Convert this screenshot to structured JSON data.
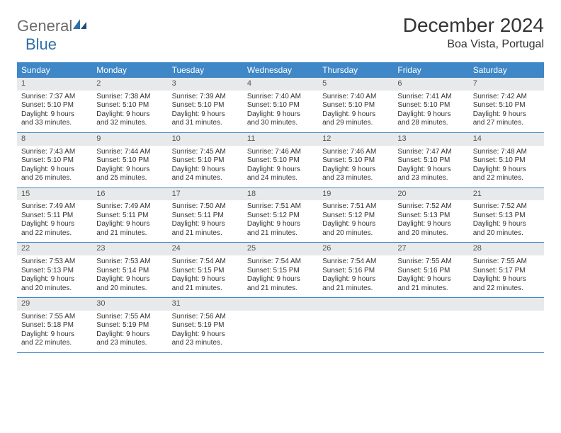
{
  "logo": {
    "general": "General",
    "blue": "Blue"
  },
  "title": "December 2024",
  "location": "Boa Vista, Portugal",
  "colors": {
    "header_bg": "#3f87c6",
    "header_text": "#ffffff",
    "daynum_bg": "#e8e9ea",
    "text": "#333333",
    "logo_gray": "#6b6b6b",
    "logo_blue": "#2f6fa8",
    "border": "#3f87c6",
    "page_bg": "#ffffff"
  },
  "day_names": [
    "Sunday",
    "Monday",
    "Tuesday",
    "Wednesday",
    "Thursday",
    "Friday",
    "Saturday"
  ],
  "weeks": [
    [
      {
        "n": "1",
        "sunrise": "Sunrise: 7:37 AM",
        "sunset": "Sunset: 5:10 PM",
        "daylight": "Daylight: 9 hours and 33 minutes."
      },
      {
        "n": "2",
        "sunrise": "Sunrise: 7:38 AM",
        "sunset": "Sunset: 5:10 PM",
        "daylight": "Daylight: 9 hours and 32 minutes."
      },
      {
        "n": "3",
        "sunrise": "Sunrise: 7:39 AM",
        "sunset": "Sunset: 5:10 PM",
        "daylight": "Daylight: 9 hours and 31 minutes."
      },
      {
        "n": "4",
        "sunrise": "Sunrise: 7:40 AM",
        "sunset": "Sunset: 5:10 PM",
        "daylight": "Daylight: 9 hours and 30 minutes."
      },
      {
        "n": "5",
        "sunrise": "Sunrise: 7:40 AM",
        "sunset": "Sunset: 5:10 PM",
        "daylight": "Daylight: 9 hours and 29 minutes."
      },
      {
        "n": "6",
        "sunrise": "Sunrise: 7:41 AM",
        "sunset": "Sunset: 5:10 PM",
        "daylight": "Daylight: 9 hours and 28 minutes."
      },
      {
        "n": "7",
        "sunrise": "Sunrise: 7:42 AM",
        "sunset": "Sunset: 5:10 PM",
        "daylight": "Daylight: 9 hours and 27 minutes."
      }
    ],
    [
      {
        "n": "8",
        "sunrise": "Sunrise: 7:43 AM",
        "sunset": "Sunset: 5:10 PM",
        "daylight": "Daylight: 9 hours and 26 minutes."
      },
      {
        "n": "9",
        "sunrise": "Sunrise: 7:44 AM",
        "sunset": "Sunset: 5:10 PM",
        "daylight": "Daylight: 9 hours and 25 minutes."
      },
      {
        "n": "10",
        "sunrise": "Sunrise: 7:45 AM",
        "sunset": "Sunset: 5:10 PM",
        "daylight": "Daylight: 9 hours and 24 minutes."
      },
      {
        "n": "11",
        "sunrise": "Sunrise: 7:46 AM",
        "sunset": "Sunset: 5:10 PM",
        "daylight": "Daylight: 9 hours and 24 minutes."
      },
      {
        "n": "12",
        "sunrise": "Sunrise: 7:46 AM",
        "sunset": "Sunset: 5:10 PM",
        "daylight": "Daylight: 9 hours and 23 minutes."
      },
      {
        "n": "13",
        "sunrise": "Sunrise: 7:47 AM",
        "sunset": "Sunset: 5:10 PM",
        "daylight": "Daylight: 9 hours and 23 minutes."
      },
      {
        "n": "14",
        "sunrise": "Sunrise: 7:48 AM",
        "sunset": "Sunset: 5:10 PM",
        "daylight": "Daylight: 9 hours and 22 minutes."
      }
    ],
    [
      {
        "n": "15",
        "sunrise": "Sunrise: 7:49 AM",
        "sunset": "Sunset: 5:11 PM",
        "daylight": "Daylight: 9 hours and 22 minutes."
      },
      {
        "n": "16",
        "sunrise": "Sunrise: 7:49 AM",
        "sunset": "Sunset: 5:11 PM",
        "daylight": "Daylight: 9 hours and 21 minutes."
      },
      {
        "n": "17",
        "sunrise": "Sunrise: 7:50 AM",
        "sunset": "Sunset: 5:11 PM",
        "daylight": "Daylight: 9 hours and 21 minutes."
      },
      {
        "n": "18",
        "sunrise": "Sunrise: 7:51 AM",
        "sunset": "Sunset: 5:12 PM",
        "daylight": "Daylight: 9 hours and 21 minutes."
      },
      {
        "n": "19",
        "sunrise": "Sunrise: 7:51 AM",
        "sunset": "Sunset: 5:12 PM",
        "daylight": "Daylight: 9 hours and 20 minutes."
      },
      {
        "n": "20",
        "sunrise": "Sunrise: 7:52 AM",
        "sunset": "Sunset: 5:13 PM",
        "daylight": "Daylight: 9 hours and 20 minutes."
      },
      {
        "n": "21",
        "sunrise": "Sunrise: 7:52 AM",
        "sunset": "Sunset: 5:13 PM",
        "daylight": "Daylight: 9 hours and 20 minutes."
      }
    ],
    [
      {
        "n": "22",
        "sunrise": "Sunrise: 7:53 AM",
        "sunset": "Sunset: 5:13 PM",
        "daylight": "Daylight: 9 hours and 20 minutes."
      },
      {
        "n": "23",
        "sunrise": "Sunrise: 7:53 AM",
        "sunset": "Sunset: 5:14 PM",
        "daylight": "Daylight: 9 hours and 20 minutes."
      },
      {
        "n": "24",
        "sunrise": "Sunrise: 7:54 AM",
        "sunset": "Sunset: 5:15 PM",
        "daylight": "Daylight: 9 hours and 21 minutes."
      },
      {
        "n": "25",
        "sunrise": "Sunrise: 7:54 AM",
        "sunset": "Sunset: 5:15 PM",
        "daylight": "Daylight: 9 hours and 21 minutes."
      },
      {
        "n": "26",
        "sunrise": "Sunrise: 7:54 AM",
        "sunset": "Sunset: 5:16 PM",
        "daylight": "Daylight: 9 hours and 21 minutes."
      },
      {
        "n": "27",
        "sunrise": "Sunrise: 7:55 AM",
        "sunset": "Sunset: 5:16 PM",
        "daylight": "Daylight: 9 hours and 21 minutes."
      },
      {
        "n": "28",
        "sunrise": "Sunrise: 7:55 AM",
        "sunset": "Sunset: 5:17 PM",
        "daylight": "Daylight: 9 hours and 22 minutes."
      }
    ],
    [
      {
        "n": "29",
        "sunrise": "Sunrise: 7:55 AM",
        "sunset": "Sunset: 5:18 PM",
        "daylight": "Daylight: 9 hours and 22 minutes."
      },
      {
        "n": "30",
        "sunrise": "Sunrise: 7:55 AM",
        "sunset": "Sunset: 5:19 PM",
        "daylight": "Daylight: 9 hours and 23 minutes."
      },
      {
        "n": "31",
        "sunrise": "Sunrise: 7:56 AM",
        "sunset": "Sunset: 5:19 PM",
        "daylight": "Daylight: 9 hours and 23 minutes."
      },
      null,
      null,
      null,
      null
    ]
  ]
}
